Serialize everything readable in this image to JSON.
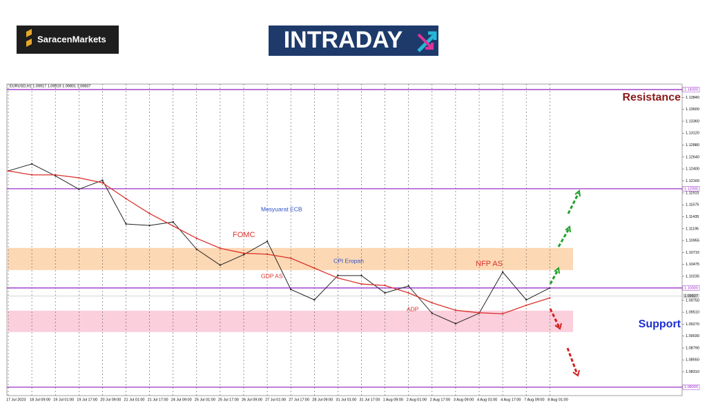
{
  "brand": {
    "name": "SaracenMarkets",
    "banner": "INTRADAY"
  },
  "chart_data": {
    "type": "line",
    "title": "EURUSD,H1 1.09917 1.09919 1.09801 1.09837",
    "categories": [
      "17 Jul 2023",
      "18 Jul 09:00",
      "19 Jul 01:00",
      "19 Jul 17:00",
      "20 Jul 09:00",
      "21 Jul 01:00",
      "21 Jul 17:00",
      "24 Jul 09:00",
      "25 Jul 01:00",
      "25 Jul 17:00",
      "26 Jul 09:00",
      "27 Jul 01:00",
      "27 Jul 17:00",
      "28 Jul 09:00",
      "31 Jul 01:00",
      "31 Jul 17:00",
      "1 Aug 09:00",
      "2 Aug 01:00",
      "2 Aug 17:00",
      "3 Aug 09:00",
      "4 Aug 01:00",
      "4 Aug 17:00",
      "7 Aug 09:00",
      "8 Aug 01:00"
    ],
    "series": [
      {
        "name": "EURUSD",
        "color": "#222222",
        "values": [
          1.1236,
          1.125,
          1.1226,
          1.1199,
          1.1217,
          1.1129,
          1.1126,
          1.1133,
          1.1078,
          1.1046,
          1.1067,
          1.1094,
          1.0997,
          1.0976,
          1.1025,
          1.1025,
          1.099,
          1.1004,
          1.0949,
          1.0928,
          1.0949,
          1.1032,
          1.0976,
          1.1
        ]
      },
      {
        "name": "MA",
        "color": "#d9312b",
        "values": [
          1.1236,
          1.1228,
          1.1228,
          1.1222,
          1.1212,
          1.118,
          1.115,
          1.1125,
          1.11,
          1.108,
          1.107,
          1.1068,
          1.106,
          1.104,
          1.102,
          1.1008,
          1.1005,
          1.099,
          1.097,
          1.0955,
          1.095,
          1.0948,
          1.0965,
          1.098
        ]
      }
    ],
    "ylim": [
      1.0783,
      1.1411
    ],
    "yticks": [
      {
        "value": 1.1384,
        "label": "1.13840"
      },
      {
        "value": 1.136,
        "label": "1.13600"
      },
      {
        "value": 1.1336,
        "label": "1.13360"
      },
      {
        "value": 1.1312,
        "label": "1.13120"
      },
      {
        "value": 1.1288,
        "label": "1.12880"
      },
      {
        "value": 1.1264,
        "label": "1.12640"
      },
      {
        "value": 1.124,
        "label": "1.12400"
      },
      {
        "value": 1.1216,
        "label": "1.12160"
      },
      {
        "value": 1.11915,
        "label": "1.11915"
      },
      {
        "value": 1.11675,
        "label": "1.11675"
      },
      {
        "value": 1.11435,
        "label": "1.11435"
      },
      {
        "value": 1.11195,
        "label": "1.11195"
      },
      {
        "value": 1.10955,
        "label": "1.10955"
      },
      {
        "value": 1.10715,
        "label": "1.10715"
      },
      {
        "value": 1.10475,
        "label": "1.10475"
      },
      {
        "value": 1.10235,
        "label": "1.10235"
      },
      {
        "value": 1.0975,
        "label": "1.09750"
      },
      {
        "value": 1.0951,
        "label": "1.09510"
      },
      {
        "value": 1.0927,
        "label": "1.09270"
      },
      {
        "value": 1.0903,
        "label": "1.09030"
      },
      {
        "value": 1.0879,
        "label": "1.08790"
      },
      {
        "value": 1.0855,
        "label": "1.08550"
      },
      {
        "value": 1.0831,
        "label": "1.08310"
      }
    ],
    "levels": [
      {
        "value": 1.14,
        "label": "1.14000"
      },
      {
        "value": 1.12,
        "label": "1.12000"
      },
      {
        "value": 1.1,
        "label": "1.10000"
      },
      {
        "value": 1.08,
        "label": "1.08000"
      }
    ],
    "level_color": "#9b30c8",
    "current": {
      "value": 1.09837,
      "label": "1.09837"
    },
    "zones": [
      {
        "from": 1.10361,
        "to": 1.10806,
        "color": "#fdd8b4"
      },
      {
        "from": 1.09111,
        "to": 1.09543,
        "color": "#fbcfdc"
      }
    ],
    "annotations": [
      {
        "text": "Mesyuarat ECB",
        "color": "#2b4fc8"
      },
      {
        "text": "FOMC",
        "color": "#d9312b"
      },
      {
        "text": "GDP AS",
        "color": "#d9312b"
      },
      {
        "text": "CPI Eropah",
        "color": "#2b4fc8"
      },
      {
        "text": "ADP",
        "color": "#d9312b"
      },
      {
        "text": "NFP AS",
        "color": "#d9312b"
      }
    ],
    "resistance": "Resistance",
    "support": "Support"
  }
}
